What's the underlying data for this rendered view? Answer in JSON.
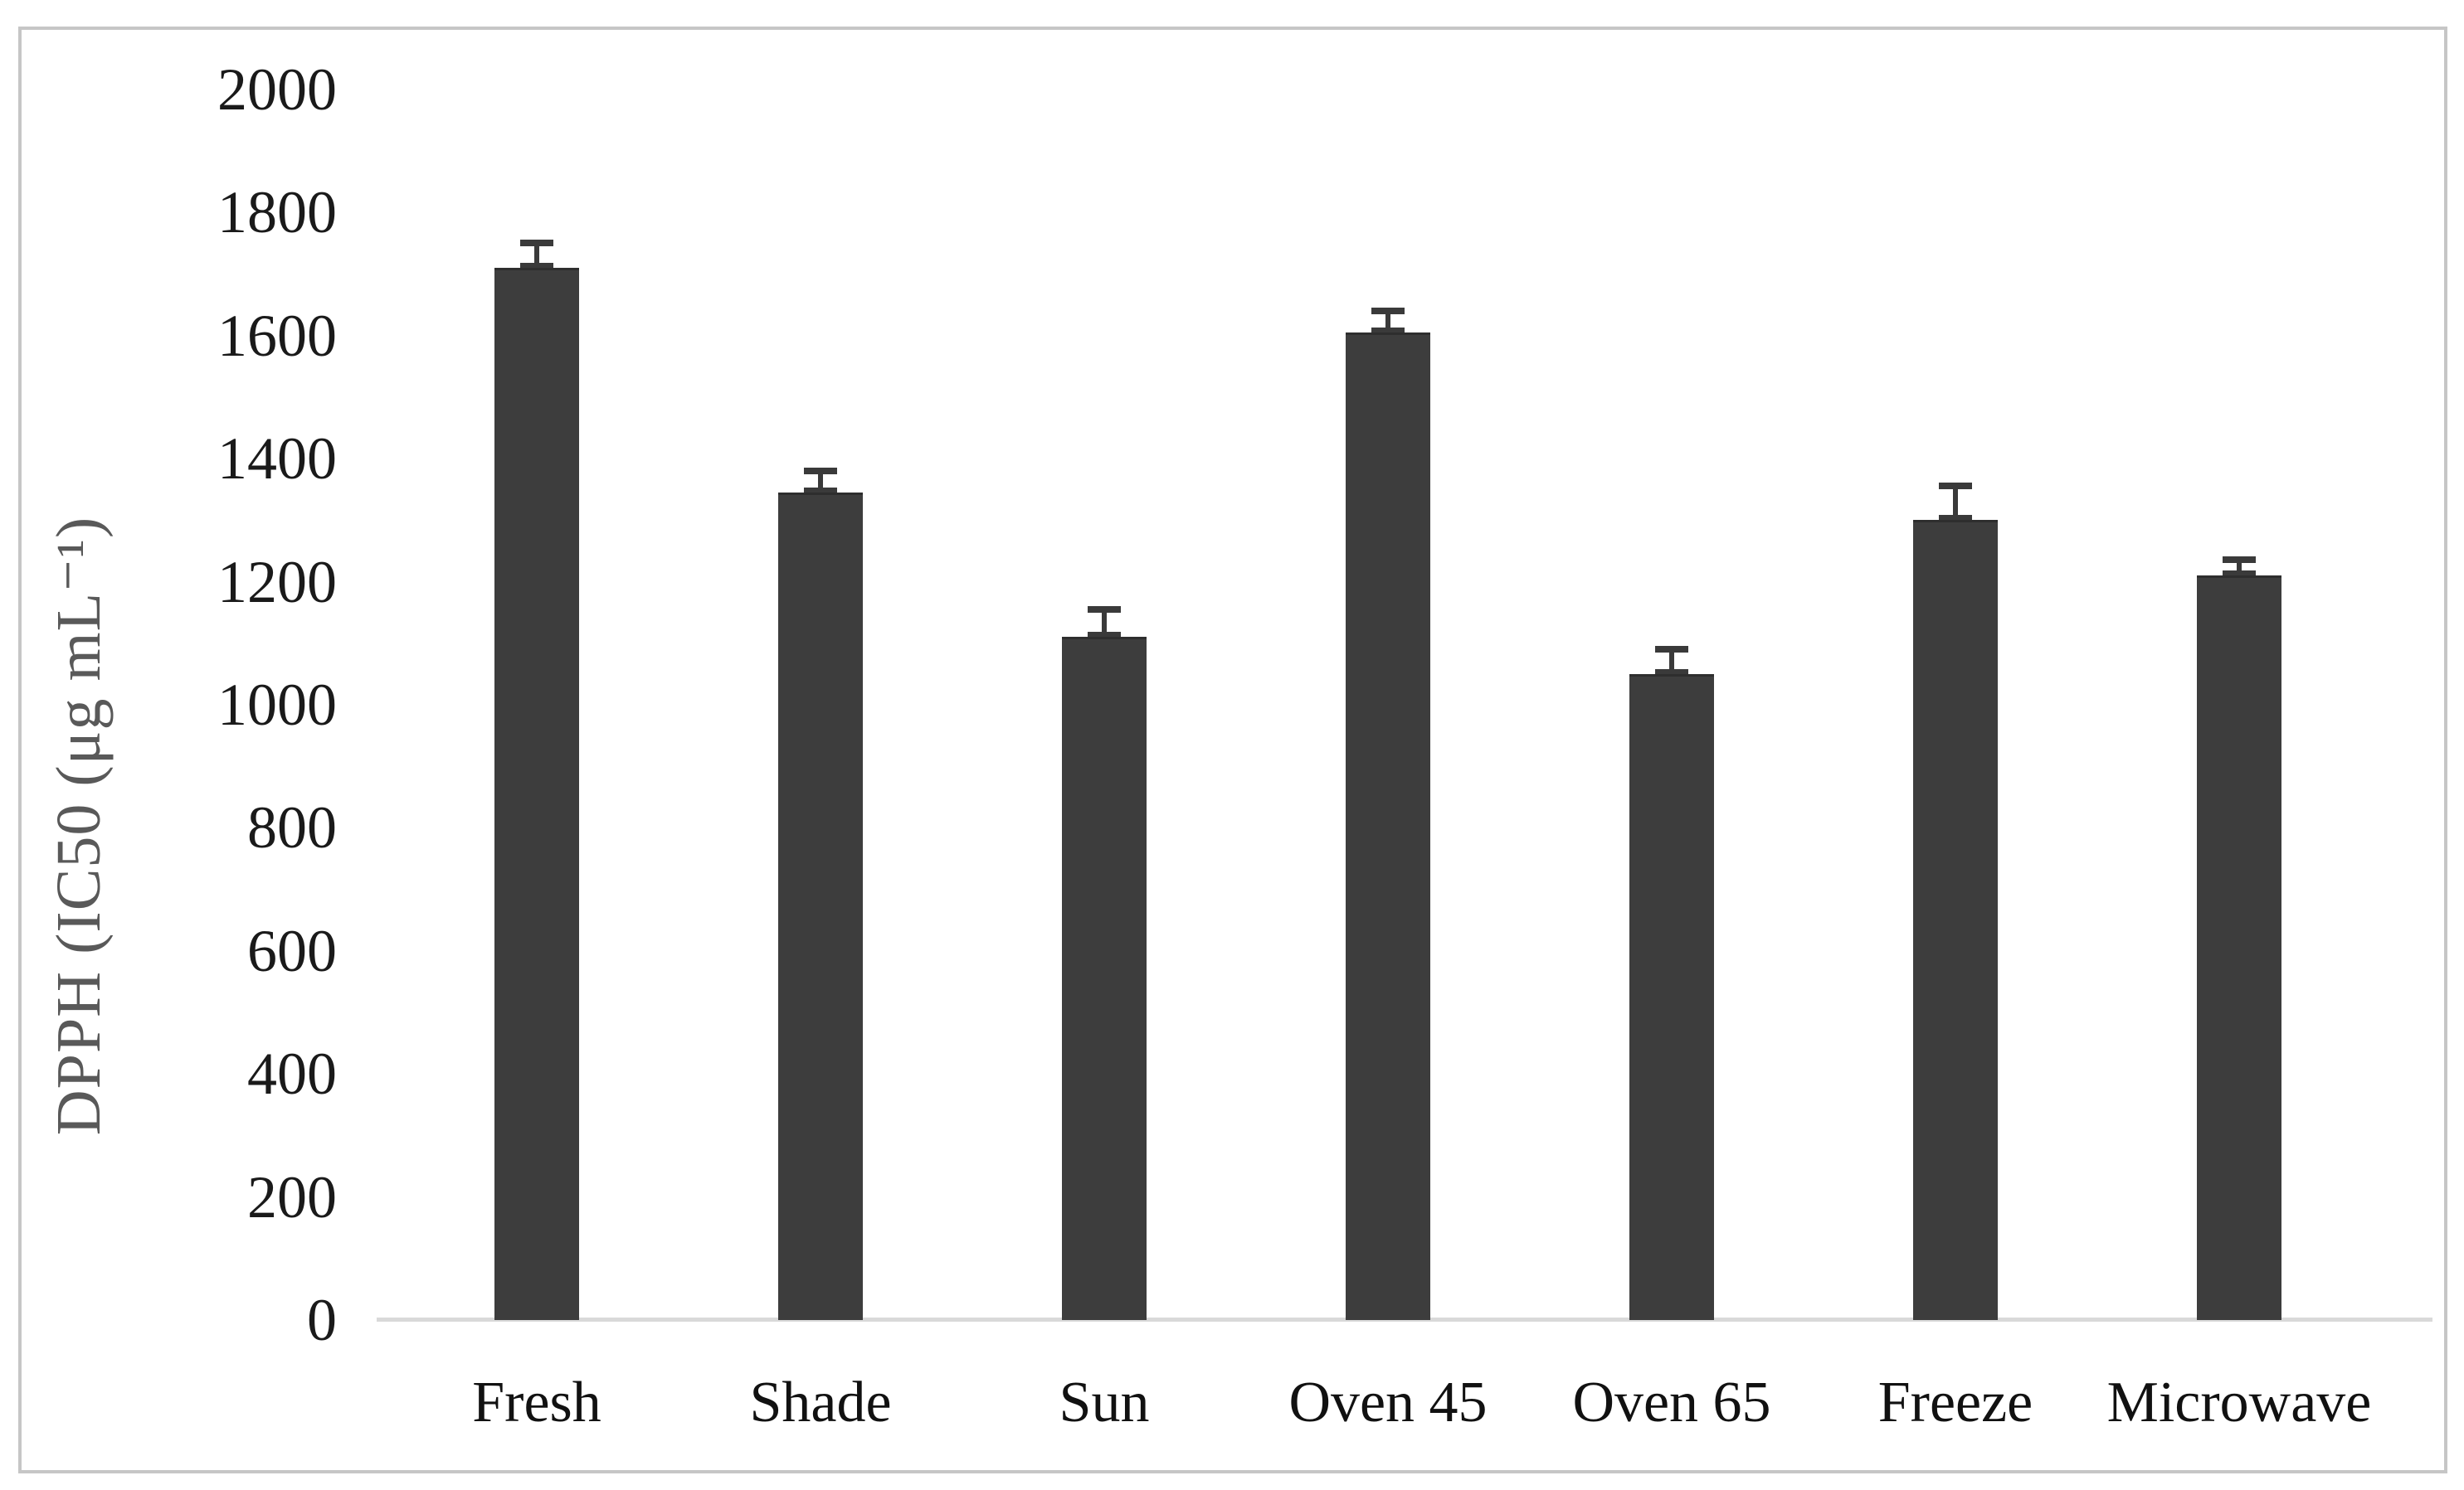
{
  "chart_data": {
    "type": "bar",
    "title": "",
    "xlabel": "",
    "ylabel": "DPPH (IC50 (μg mL⁻¹)",
    "ylim": [
      0,
      2000
    ],
    "ytick_step": 200,
    "yticks": [
      0,
      200,
      400,
      600,
      800,
      1000,
      1200,
      1400,
      1600,
      1800,
      2000
    ],
    "grid": false,
    "legend_position": "none",
    "categories": [
      "Fresh",
      "Shade",
      "Sun",
      "Oven 45",
      "Oven 65",
      "Freeze",
      "Microwave"
    ],
    "series": [
      {
        "name": "DPPH IC50",
        "values": [
          1710,
          1345,
          1110,
          1605,
          1050,
          1300,
          1210
        ],
        "errors": [
          40,
          35,
          45,
          35,
          40,
          55,
          25
        ]
      }
    ],
    "colors": {
      "bar": "#3d3d3d",
      "error_bar": "#3a3a3a",
      "axis_line": "#d9d9d9",
      "tick_label": "#1a1a1a",
      "axis_title": "#595959",
      "frame_border": "#c6c6c6",
      "background": "#ffffff"
    }
  }
}
